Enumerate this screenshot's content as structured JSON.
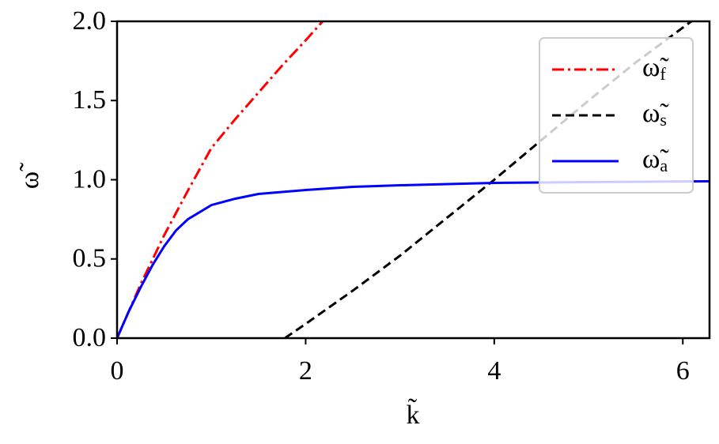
{
  "chart_data": {
    "type": "line",
    "xlabel": "k̃",
    "ylabel": "ω̃",
    "xlim": [
      0,
      6.283
    ],
    "ylim": [
      0,
      2
    ],
    "xticks": [
      0,
      2,
      4,
      6
    ],
    "yticks": [
      {
        "value": 0,
        "label": "0.0"
      },
      0.5,
      {
        "value": 1,
        "label": "1.0"
      },
      1.5,
      {
        "value": 2,
        "label": "2.0"
      }
    ],
    "legend": "upper right",
    "series": [
      {
        "name": "ω̃f",
        "color": "#ff0000",
        "style": "dashdot",
        "x": [
          0,
          0.25,
          0.5,
          0.75,
          1,
          1.25,
          1.5,
          1.75,
          2,
          2.18
        ],
        "values": [
          0,
          0.34,
          0.65,
          0.93,
          1.2,
          1.38,
          1.55,
          1.72,
          1.88,
          2.0
        ]
      },
      {
        "name": "ω̃s",
        "color": "#000000",
        "style": "dashed",
        "x": [
          1.78,
          2,
          2.5,
          3,
          3.5,
          4,
          4.5,
          5,
          5.5,
          6.09
        ],
        "values": [
          0,
          0.09,
          0.3,
          0.52,
          0.76,
          1.0,
          1.25,
          1.5,
          1.74,
          2.0
        ]
      },
      {
        "name": "ω̃a",
        "color": "#0000ff",
        "style": "solid",
        "x": [
          0,
          0.125,
          0.25,
          0.375,
          0.5,
          0.625,
          0.75,
          1,
          1.25,
          1.5,
          2,
          2.5,
          3,
          4,
          5,
          6.283
        ],
        "values": [
          0,
          0.17,
          0.32,
          0.46,
          0.58,
          0.68,
          0.75,
          0.84,
          0.88,
          0.91,
          0.935,
          0.955,
          0.965,
          0.98,
          0.985,
          0.99
        ]
      }
    ]
  }
}
